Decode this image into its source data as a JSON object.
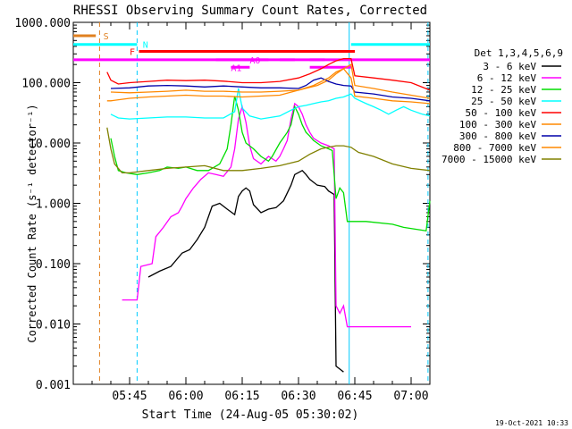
{
  "chart_data": {
    "type": "line",
    "title": "RHESSI Observing Summary Count Rates, Corrected",
    "ylabel": "Corrected Count Rate (s⁻¹ detector⁻¹)",
    "xlabel": "Start Time (24-Aug-05 05:30:02)",
    "x_unit": "minutes after 05:30:02",
    "xlim": [
      0,
      95
    ],
    "ylim": [
      0.001,
      1000
    ],
    "yscale": "log",
    "x_ticks": [
      {
        "label": "05:45",
        "x": 15
      },
      {
        "label": "06:00",
        "x": 30
      },
      {
        "label": "06:15",
        "x": 45
      },
      {
        "label": "06:30",
        "x": 60
      },
      {
        "label": "06:45",
        "x": 75
      },
      {
        "label": "07:00",
        "x": 90
      }
    ],
    "y_ticks": [
      {
        "label": "1000.000",
        "y": 1000
      },
      {
        "label": "100.000",
        "y": 100
      },
      {
        "label": "10.000",
        "y": 10
      },
      {
        "label": "1.000",
        "y": 1
      },
      {
        "label": "0.100",
        "y": 0.1
      },
      {
        "label": "0.010",
        "y": 0.01
      },
      {
        "label": "0.001",
        "y": 0.001
      }
    ],
    "legend_title": "Det 1,3,4,5,6,9",
    "legend_position": "right",
    "series": [
      {
        "name": "3 - 6 keV",
        "color": "#000000",
        "points": [
          [
            20,
            0.06
          ],
          [
            23,
            0.075
          ],
          [
            26,
            0.09
          ],
          [
            29,
            0.15
          ],
          [
            31,
            0.17
          ],
          [
            33,
            0.25
          ],
          [
            35,
            0.4
          ],
          [
            36,
            0.6
          ],
          [
            37,
            0.9
          ],
          [
            39,
            1.0
          ],
          [
            41,
            0.8
          ],
          [
            43,
            0.65
          ],
          [
            44,
            1.3
          ],
          [
            45,
            1.6
          ],
          [
            46,
            1.8
          ],
          [
            47,
            1.6
          ],
          [
            48,
            0.95
          ],
          [
            50,
            0.7
          ],
          [
            52,
            0.8
          ],
          [
            54,
            0.85
          ],
          [
            56,
            1.1
          ],
          [
            58,
            2.0
          ],
          [
            59,
            3.0
          ],
          [
            61,
            3.5
          ],
          [
            62,
            3.0
          ],
          [
            63,
            2.5
          ],
          [
            65,
            2.0
          ],
          [
            67,
            1.9
          ],
          [
            68,
            1.6
          ],
          [
            69.5,
            1.4
          ],
          [
            70,
            0.002
          ],
          [
            72,
            0.0016
          ]
        ]
      },
      {
        "name": "6 - 12 keV",
        "color": "#ff00ff",
        "points": [
          [
            13,
            0.025
          ],
          [
            17,
            0.025
          ],
          [
            18,
            0.09
          ],
          [
            21,
            0.1
          ],
          [
            22,
            0.28
          ],
          [
            24,
            0.4
          ],
          [
            26,
            0.6
          ],
          [
            28,
            0.7
          ],
          [
            29,
            0.9
          ],
          [
            30,
            1.2
          ],
          [
            32,
            1.8
          ],
          [
            34,
            2.5
          ],
          [
            36,
            3.2
          ],
          [
            38,
            3.0
          ],
          [
            40,
            2.8
          ],
          [
            42,
            4.0
          ],
          [
            43,
            8.0
          ],
          [
            44,
            25
          ],
          [
            45,
            40
          ],
          [
            46,
            22
          ],
          [
            47,
            9
          ],
          [
            48,
            5.5
          ],
          [
            50,
            4.5
          ],
          [
            52,
            6
          ],
          [
            54,
            5
          ],
          [
            55,
            6
          ],
          [
            56,
            8
          ],
          [
            57,
            11
          ],
          [
            58,
            25
          ],
          [
            59,
            45
          ],
          [
            60,
            40
          ],
          [
            61,
            30
          ],
          [
            62,
            20
          ],
          [
            63,
            15
          ],
          [
            64,
            12
          ],
          [
            66,
            10
          ],
          [
            68,
            9
          ],
          [
            69.5,
            8
          ],
          [
            70,
            0.02
          ],
          [
            71,
            0.015
          ],
          [
            72,
            0.02
          ],
          [
            73,
            0.009
          ],
          [
            90,
            0.009
          ]
        ]
      },
      {
        "name": "12 - 25 keV",
        "color": "#00dd00",
        "points": [
          [
            10,
            12
          ],
          [
            11,
            6
          ],
          [
            12,
            3.5
          ],
          [
            14,
            3.2
          ],
          [
            17,
            3.0
          ],
          [
            20,
            3.2
          ],
          [
            23,
            3.5
          ],
          [
            25,
            4.0
          ],
          [
            28,
            3.8
          ],
          [
            30,
            4.0
          ],
          [
            33,
            3.5
          ],
          [
            36,
            3.5
          ],
          [
            39,
            4.5
          ],
          [
            41,
            8
          ],
          [
            42,
            20
          ],
          [
            43,
            60
          ],
          [
            44,
            35
          ],
          [
            45,
            15
          ],
          [
            46,
            10
          ],
          [
            48,
            8
          ],
          [
            50,
            6
          ],
          [
            52,
            5
          ],
          [
            53,
            6
          ],
          [
            55,
            10
          ],
          [
            57,
            15
          ],
          [
            58,
            20
          ],
          [
            59,
            40
          ],
          [
            60,
            30
          ],
          [
            61,
            20
          ],
          [
            62,
            15
          ],
          [
            63,
            13
          ],
          [
            64,
            11
          ],
          [
            66,
            9
          ],
          [
            68,
            8
          ],
          [
            69,
            7.5
          ],
          [
            70,
            1.2
          ],
          [
            71,
            1.8
          ],
          [
            72,
            1.5
          ],
          [
            73,
            0.5
          ],
          [
            78,
            0.5
          ],
          [
            85,
            0.45
          ],
          [
            88,
            0.4
          ],
          [
            94,
            0.35
          ],
          [
            95,
            1.1
          ]
        ]
      },
      {
        "name": "25 - 50 keV",
        "color": "#00ffff",
        "points": [
          [
            10,
            30
          ],
          [
            12,
            26
          ],
          [
            15,
            25
          ],
          [
            20,
            26
          ],
          [
            25,
            27
          ],
          [
            30,
            27
          ],
          [
            35,
            26
          ],
          [
            40,
            26
          ],
          [
            43,
            33
          ],
          [
            44,
            80
          ],
          [
            45,
            38
          ],
          [
            47,
            28
          ],
          [
            50,
            25
          ],
          [
            55,
            28
          ],
          [
            58,
            35
          ],
          [
            60,
            40
          ],
          [
            62,
            42
          ],
          [
            64,
            45
          ],
          [
            66,
            48
          ],
          [
            68,
            50
          ],
          [
            70,
            55
          ],
          [
            72,
            58
          ],
          [
            74,
            65
          ],
          [
            75,
            55
          ],
          [
            78,
            45
          ],
          [
            80,
            40
          ],
          [
            82,
            35
          ],
          [
            84,
            30
          ],
          [
            86,
            35
          ],
          [
            88,
            40
          ],
          [
            90,
            35
          ],
          [
            93,
            30
          ],
          [
            95,
            28
          ]
        ]
      },
      {
        "name": "50 - 100 keV",
        "color": "#ff0000",
        "points": [
          [
            9,
            150
          ],
          [
            10,
            110
          ],
          [
            12,
            95
          ],
          [
            15,
            100
          ],
          [
            20,
            105
          ],
          [
            25,
            110
          ],
          [
            30,
            108
          ],
          [
            35,
            110
          ],
          [
            40,
            106
          ],
          [
            45,
            100
          ],
          [
            50,
            100
          ],
          [
            55,
            105
          ],
          [
            60,
            120
          ],
          [
            63,
            140
          ],
          [
            66,
            170
          ],
          [
            68,
            200
          ],
          [
            70,
            230
          ],
          [
            72,
            250
          ],
          [
            74,
            250
          ],
          [
            75,
            130
          ],
          [
            80,
            120
          ],
          [
            85,
            110
          ],
          [
            90,
            100
          ],
          [
            95,
            75
          ]
        ]
      },
      {
        "name": "100 - 300 keV",
        "color": "#ff8800",
        "points": [
          [
            10,
            70
          ],
          [
            15,
            68
          ],
          [
            20,
            70
          ],
          [
            25,
            72
          ],
          [
            30,
            75
          ],
          [
            35,
            72
          ],
          [
            40,
            72
          ],
          [
            45,
            70
          ],
          [
            50,
            70
          ],
          [
            55,
            72
          ],
          [
            60,
            75
          ],
          [
            65,
            90
          ],
          [
            68,
            110
          ],
          [
            70,
            140
          ],
          [
            72,
            170
          ],
          [
            74,
            200
          ],
          [
            75,
            90
          ],
          [
            80,
            80
          ],
          [
            85,
            70
          ],
          [
            90,
            62
          ],
          [
            95,
            55
          ]
        ]
      },
      {
        "name": "300 - 800 keV",
        "color": "#0000aa",
        "points": [
          [
            10,
            80
          ],
          [
            15,
            82
          ],
          [
            20,
            88
          ],
          [
            25,
            90
          ],
          [
            30,
            88
          ],
          [
            35,
            85
          ],
          [
            40,
            88
          ],
          [
            45,
            85
          ],
          [
            50,
            82
          ],
          [
            55,
            82
          ],
          [
            60,
            80
          ],
          [
            62,
            90
          ],
          [
            64,
            110
          ],
          [
            66,
            120
          ],
          [
            68,
            105
          ],
          [
            70,
            95
          ],
          [
            72,
            90
          ],
          [
            74,
            88
          ],
          [
            75,
            70
          ],
          [
            80,
            65
          ],
          [
            85,
            58
          ],
          [
            90,
            55
          ],
          [
            95,
            50
          ]
        ]
      },
      {
        "name": "800 - 7000 keV",
        "color": "#ff8800",
        "points": [
          [
            9,
            50
          ],
          [
            10,
            50
          ],
          [
            15,
            55
          ],
          [
            20,
            58
          ],
          [
            25,
            60
          ],
          [
            30,
            62
          ],
          [
            35,
            60
          ],
          [
            40,
            60
          ],
          [
            45,
            58
          ],
          [
            50,
            60
          ],
          [
            55,
            62
          ],
          [
            60,
            75
          ],
          [
            64,
            90
          ],
          [
            68,
            120
          ],
          [
            70,
            150
          ],
          [
            72,
            170
          ],
          [
            74,
            120
          ],
          [
            75,
            60
          ],
          [
            80,
            55
          ],
          [
            85,
            50
          ],
          [
            90,
            48
          ],
          [
            95,
            45
          ]
        ]
      },
      {
        "name": "7000 - 15000 keV",
        "color": "#808000",
        "points": [
          [
            9,
            18
          ],
          [
            10,
            8
          ],
          [
            11,
            4.5
          ],
          [
            13,
            3.2
          ],
          [
            15,
            3.2
          ],
          [
            20,
            3.5
          ],
          [
            25,
            3.8
          ],
          [
            30,
            4.0
          ],
          [
            35,
            4.2
          ],
          [
            40,
            3.5
          ],
          [
            45,
            3.5
          ],
          [
            50,
            3.8
          ],
          [
            55,
            4.2
          ],
          [
            60,
            5.0
          ],
          [
            63,
            6.5
          ],
          [
            66,
            8.0
          ],
          [
            68,
            8.5
          ],
          [
            70,
            9.0
          ],
          [
            72,
            9.0
          ],
          [
            74,
            8.5
          ],
          [
            76,
            7.0
          ],
          [
            80,
            6.0
          ],
          [
            85,
            4.5
          ],
          [
            90,
            3.8
          ],
          [
            95,
            3.5
          ]
        ]
      }
    ],
    "flag_bars": [
      {
        "label": "S",
        "color": "#e08020",
        "x": [
          0,
          6
        ],
        "y": 600,
        "label_x": 8
      },
      {
        "label": "N",
        "color": "#00ffff",
        "x": [
          0,
          17
        ],
        "y": 430,
        "label_x": 18.5
      },
      {
        "label": "N",
        "color": "#00ffff",
        "x": [
          74,
          95
        ],
        "y": 430
      },
      {
        "label": "F",
        "color": "#ff0000",
        "x": [
          17.5,
          75
        ],
        "y": 330,
        "label_x": 15
      },
      {
        "label": "",
        "color": "#ff00ff",
        "x": [
          0,
          95
        ],
        "y": 240
      },
      {
        "label": "A0",
        "color": "#ff00ff",
        "segments": [
          [
            38,
            52
          ],
          [
            55,
            59
          ],
          [
            63,
            67
          ]
        ],
        "y": 240,
        "label_x": 47
      },
      {
        "label": "A1",
        "color": "#ff00ff",
        "segments": [
          [
            42,
            47
          ],
          [
            63,
            74
          ]
        ],
        "y": 180,
        "label_x": 42
      }
    ],
    "vertical_markers": [
      {
        "x": 7,
        "color": "#e08020",
        "style": "dashed"
      },
      {
        "x": 17,
        "color": "#00ccff",
        "style": "dashed"
      },
      {
        "x": 73.5,
        "color": "#00ccff",
        "style": "solid"
      },
      {
        "x": 94.5,
        "color": "#00ccff",
        "style": "dashed"
      }
    ],
    "footer_date": "19-Oct-2021 10:33"
  }
}
